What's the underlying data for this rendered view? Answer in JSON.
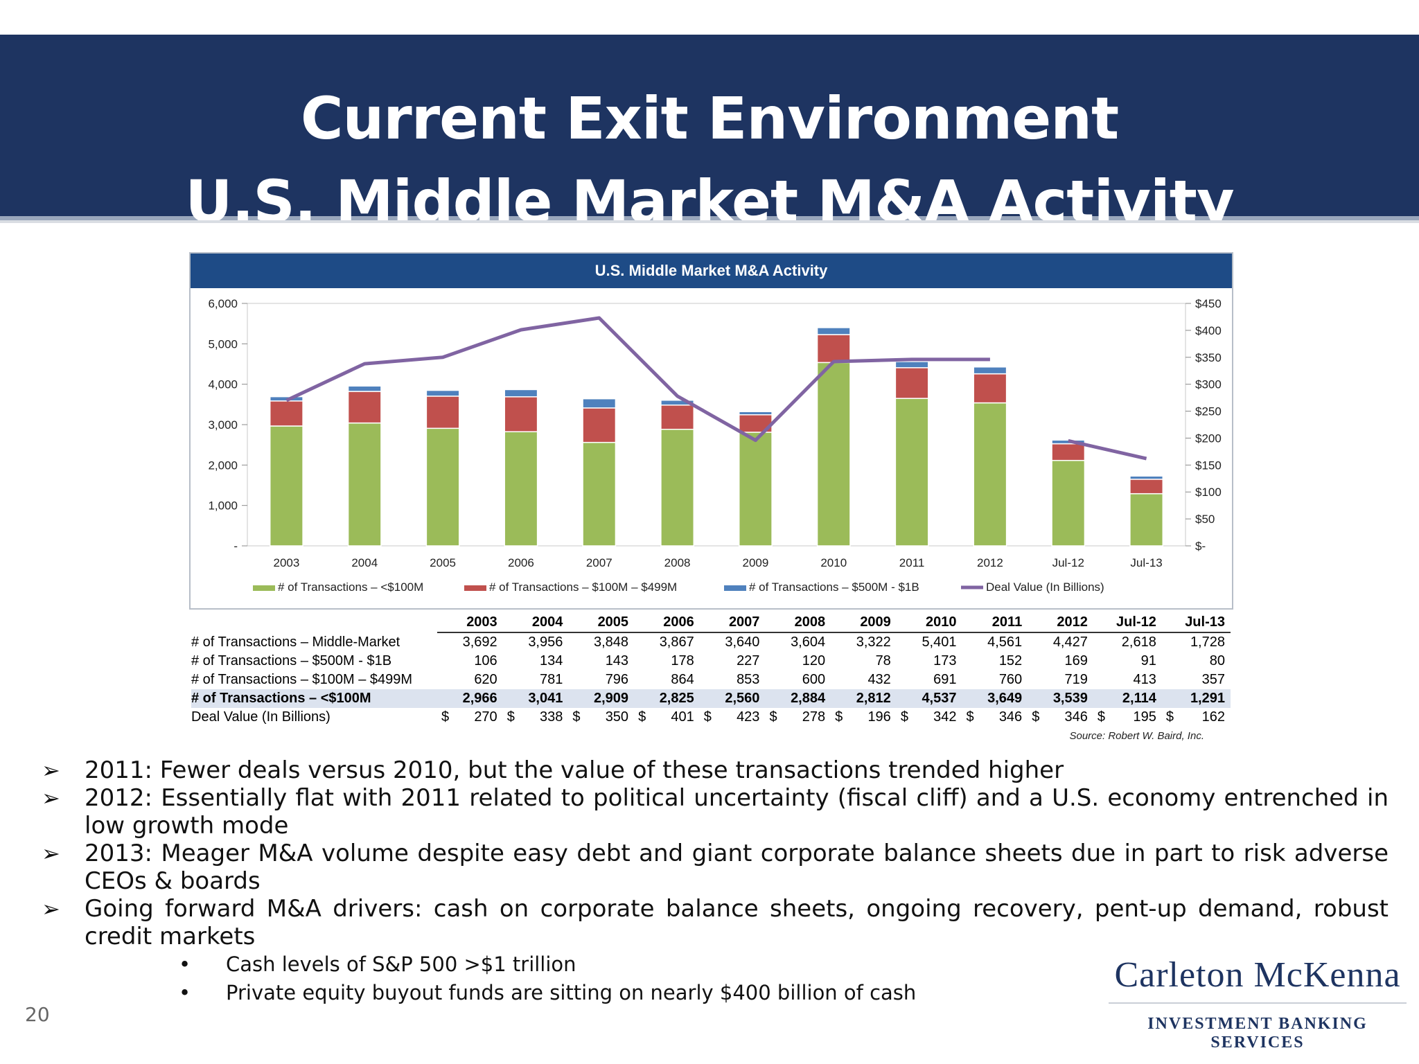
{
  "header": {
    "title_line1": "Current Exit Environment",
    "title_line2": "U.S. Middle Market M&A Activity"
  },
  "chart_data": {
    "type": "bar",
    "title": "U.S. Middle Market M&A Activity",
    "categories": [
      "2003",
      "2004",
      "2005",
      "2006",
      "2007",
      "2008",
      "2009",
      "2010",
      "2011",
      "2012",
      "Jul-12",
      "Jul-13"
    ],
    "stacked": true,
    "series": [
      {
        "name": "# of Transactions – <$100M",
        "color": "#9bbb59",
        "values": [
          2966,
          3041,
          2909,
          2825,
          2560,
          2884,
          2812,
          4537,
          3649,
          3539,
          2114,
          1291
        ]
      },
      {
        "name": "# of Transactions – $100M – $499M",
        "color": "#c0504d",
        "values": [
          620,
          781,
          796,
          864,
          853,
          600,
          432,
          691,
          760,
          719,
          413,
          357
        ]
      },
      {
        "name": "# of Transactions – $500M - $1B",
        "color": "#4f81bd",
        "values": [
          106,
          134,
          143,
          178,
          227,
          120,
          78,
          173,
          152,
          169,
          91,
          80
        ]
      }
    ],
    "line_series": {
      "name": "Deal Value (In Billions)",
      "color": "#8064a2",
      "axis": "right",
      "values": [
        270,
        338,
        350,
        401,
        423,
        278,
        196,
        342,
        346,
        346,
        195,
        162
      ]
    },
    "ylim_left": [
      0,
      6000
    ],
    "ylim_right": [
      0,
      450
    ],
    "left_ticks": [
      "-",
      "1,000",
      "2,000",
      "3,000",
      "4,000",
      "5,000",
      "6,000"
    ],
    "right_ticks": [
      "$-",
      "$50",
      "$100",
      "$150",
      "$200",
      "$250",
      "$300",
      "$350",
      "$400",
      "$450"
    ],
    "legend_labels": [
      "# of Transactions  – <$100M",
      "# of Transactions  – $100M  – $499M",
      "# of Transactions  – $500M  - $1B",
      "Deal Value (In Billions)"
    ],
    "grid": false,
    "legend_position": "bottom"
  },
  "table": {
    "columns": [
      "2003",
      "2004",
      "2005",
      "2006",
      "2007",
      "2008",
      "2009",
      "2010",
      "2011",
      "2012",
      "Jul-12",
      "Jul-13"
    ],
    "rows": [
      {
        "label": "# of Transactions – Middle-Market",
        "values": [
          "3,692",
          "3,956",
          "3,848",
          "3,867",
          "3,640",
          "3,604",
          "3,322",
          "5,401",
          "4,561",
          "4,427",
          "2,618",
          "1,728"
        ],
        "highlight": false
      },
      {
        "label": "# of Transactions – $500M - $1B",
        "values": [
          "106",
          "134",
          "143",
          "178",
          "227",
          "120",
          "78",
          "173",
          "152",
          "169",
          "91",
          "80"
        ],
        "highlight": false
      },
      {
        "label": "# of Transactions – $100M – $499M",
        "values": [
          "620",
          "781",
          "796",
          "864",
          "853",
          "600",
          "432",
          "691",
          "760",
          "719",
          "413",
          "357"
        ],
        "highlight": false
      },
      {
        "label": "# of Transactions – <$100M",
        "values": [
          "2,966",
          "3,041",
          "2,909",
          "2,825",
          "2,560",
          "2,884",
          "2,812",
          "4,537",
          "3,649",
          "3,539",
          "2,114",
          "1,291"
        ],
        "highlight": true
      }
    ],
    "deal_value_row": {
      "label": "Deal Value (In Billions)",
      "currency": "$",
      "values": [
        "270",
        "338",
        "350",
        "401",
        "423",
        "278",
        "196",
        "342",
        "346",
        "346",
        "195",
        "162"
      ]
    },
    "source": "Source: Robert W. Baird, Inc."
  },
  "bullets": [
    "2011: Fewer deals versus 2010, but the value of these transactions trended higher",
    "2012: Essentially flat with 2011 related to political uncertainty (fiscal cliff) and a U.S. economy entrenched in low growth mode",
    "2013: Meager M&A volume despite easy debt and giant corporate balance sheets due in part to risk adverse CEOs & boards",
    "Going forward M&A drivers: cash on corporate balance sheets, ongoing recovery, pent-up demand, robust credit markets"
  ],
  "sub_bullets": [
    "Cash levels of S&P 500 >$1 trillion",
    "Private equity buyout funds are sitting on nearly $400 billion of cash"
  ],
  "bullet_glyph": "➢",
  "sub_bullet_glyph": "•",
  "page_number": "20",
  "logo": {
    "name": "Carleton McKenna",
    "tagline": "INVESTMENT BANKING SERVICES"
  }
}
